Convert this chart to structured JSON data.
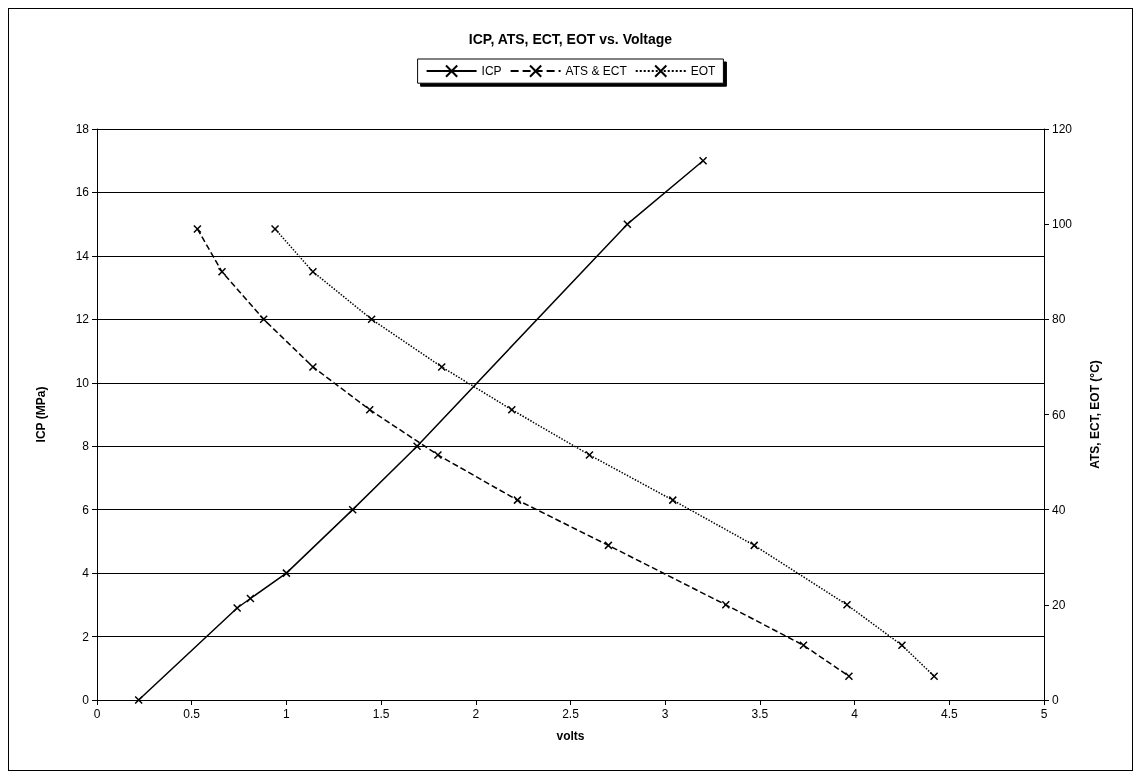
{
  "chart_data": {
    "type": "line",
    "title": "ICP, ATS, ECT, EOT vs. Voltage",
    "xlabel": "volts",
    "ylabel": "ICP (MPa)",
    "y2label": "ATS, ECT, EOT (°C)",
    "xlim": [
      0,
      5
    ],
    "xticks": [
      0,
      0.5,
      1,
      1.5,
      2,
      2.5,
      3,
      3.5,
      4,
      4.5,
      5
    ],
    "ylim": [
      0,
      18
    ],
    "yticks": [
      0,
      2,
      4,
      6,
      8,
      10,
      12,
      14,
      16,
      18
    ],
    "y2lim": [
      0,
      120
    ],
    "y2ticks": [
      0,
      20,
      40,
      60,
      80,
      100,
      120
    ],
    "grid": "y",
    "legend": "top",
    "marker": "cross",
    "series": [
      {
        "name": "ICP",
        "color": "#000000",
        "line_style": "solid",
        "x": [
          0.22,
          0.74,
          0.81,
          1.0,
          1.35,
          1.69,
          2.8,
          3.2
        ],
        "values": [
          0,
          2.9,
          3.2,
          4,
          6,
          8,
          15,
          17
        ]
      },
      {
        "name": "ATS & ECT",
        "color": "#000000",
        "line_style": "dashed",
        "axis": "y2",
        "x": [
          0.53,
          0.66,
          0.88,
          1.14,
          1.44,
          1.8,
          2.22,
          2.7,
          3.32,
          3.73,
          3.97
        ],
        "values": [
          99,
          90,
          80,
          70,
          61,
          51.5,
          42,
          32.5,
          20,
          11.5,
          5
        ]
      },
      {
        "name": "EOT",
        "color": "#000000",
        "line_style": "dotted",
        "axis": "y2",
        "x": [
          0.94,
          1.14,
          1.45,
          1.82,
          2.19,
          2.6,
          3.04,
          3.47,
          3.96,
          4.25,
          4.42
        ],
        "values": [
          99,
          90,
          80,
          70,
          61,
          51.5,
          42,
          32.5,
          20,
          11.5,
          5
        ]
      }
    ]
  }
}
